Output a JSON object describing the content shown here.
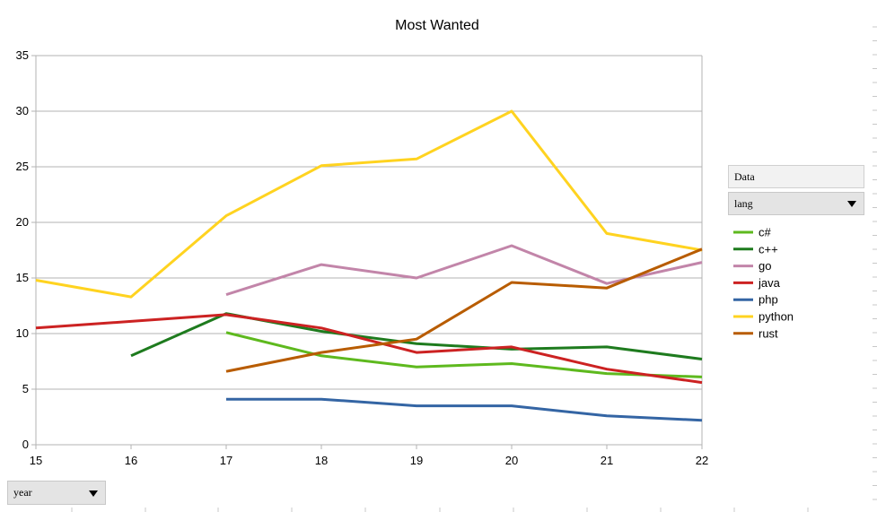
{
  "chart_data": {
    "type": "line",
    "title": "Most Wanted",
    "xlabel": "",
    "ylabel": "",
    "x": [
      15,
      16,
      17,
      18,
      19,
      20,
      21,
      22
    ],
    "xlim": [
      15,
      22
    ],
    "ylim": [
      0,
      35
    ],
    "yticks": [
      0,
      5,
      10,
      15,
      20,
      25,
      30,
      35
    ],
    "grid": true,
    "legend": "right",
    "series": [
      {
        "name": "c#",
        "color": "#5eb91e",
        "values": [
          null,
          null,
          10.1,
          8.0,
          7.0,
          7.3,
          6.4,
          6.1
        ]
      },
      {
        "name": "c++",
        "color": "#1e7b1e",
        "values": [
          null,
          8.0,
          11.8,
          10.2,
          9.1,
          8.6,
          8.8,
          7.7
        ]
      },
      {
        "name": "go",
        "color": "#c285a9",
        "values": [
          null,
          null,
          13.5,
          16.2,
          15.0,
          17.9,
          14.5,
          16.4
        ]
      },
      {
        "name": "java",
        "color": "#cc2222",
        "values": [
          10.5,
          11.1,
          11.7,
          10.5,
          8.3,
          8.8,
          6.8,
          5.6
        ]
      },
      {
        "name": "php",
        "color": "#3465a4",
        "values": [
          null,
          null,
          4.1,
          4.1,
          3.5,
          3.5,
          2.6,
          2.2
        ]
      },
      {
        "name": "python",
        "color": "#ffd320",
        "values": [
          14.8,
          13.3,
          20.6,
          25.1,
          25.7,
          30.0,
          19.0,
          17.5
        ]
      },
      {
        "name": "rust",
        "color": "#b85c00",
        "values": [
          null,
          null,
          6.6,
          8.3,
          9.5,
          14.6,
          14.1,
          17.6
        ]
      }
    ]
  },
  "pivot": {
    "data_label": "Data",
    "column_field": "lang",
    "row_field": "year"
  }
}
